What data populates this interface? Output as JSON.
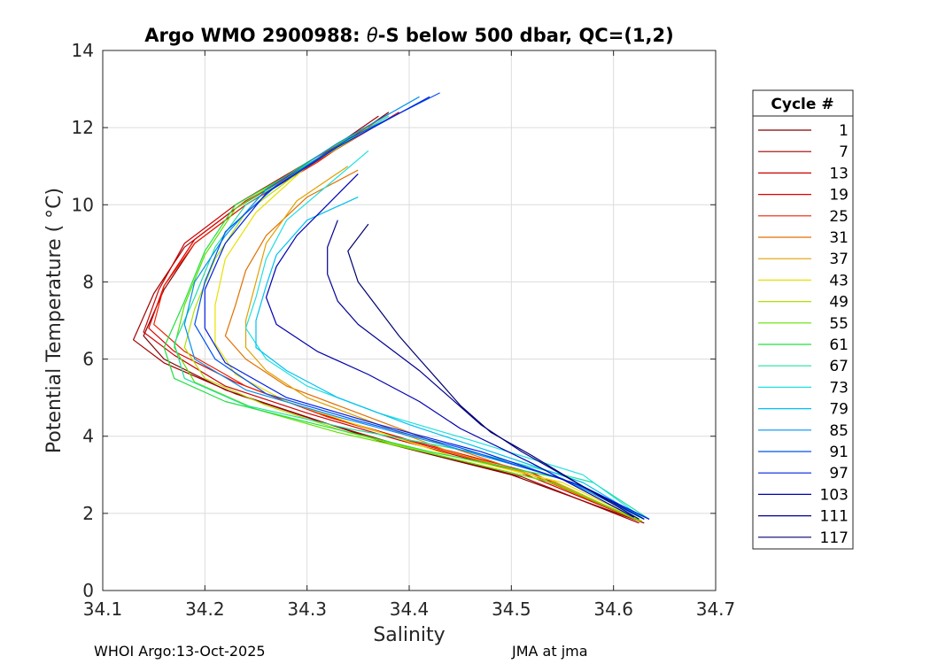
{
  "chart_data": {
    "type": "line",
    "title_prefix": "Argo WMO 2900988: ",
    "title_symbol": "θ",
    "title_suffix": "-S below 500 dbar,  QC=(1,2)",
    "xlabel": "Salinity",
    "ylabel": "Potential Temperature ( °C)",
    "xlim": [
      34.1,
      34.7
    ],
    "ylim": [
      0,
      14
    ],
    "xticks": [
      34.1,
      34.2,
      34.3,
      34.4,
      34.5,
      34.6,
      34.7
    ],
    "xtick_labels": [
      "34.1",
      "34.2",
      "34.3",
      "34.4",
      "34.5",
      "34.6",
      "34.7"
    ],
    "yticks": [
      0,
      2,
      4,
      6,
      8,
      10,
      12,
      14
    ],
    "ytick_labels": [
      "0",
      "2",
      "4",
      "6",
      "8",
      "10",
      "12",
      "14"
    ],
    "grid": true,
    "legend_title": "Cycle #",
    "legend_position": "right",
    "series": [
      {
        "name": "1",
        "color": "#800000",
        "points": [
          [
            34.38,
            12.4
          ],
          [
            34.32,
            11.3
          ],
          [
            34.24,
            10.0
          ],
          [
            34.19,
            9.0
          ],
          [
            34.16,
            7.8
          ],
          [
            34.14,
            6.6
          ],
          [
            34.16,
            6.0
          ],
          [
            34.22,
            5.2
          ],
          [
            34.3,
            4.5
          ],
          [
            34.38,
            3.8
          ],
          [
            34.5,
            3.0
          ],
          [
            34.63,
            1.75
          ]
        ]
      },
      {
        "name": "7",
        "color": "#a00000",
        "points": [
          [
            34.37,
            12.3
          ],
          [
            34.31,
            11.2
          ],
          [
            34.23,
            9.9
          ],
          [
            34.18,
            8.9
          ],
          [
            34.15,
            7.7
          ],
          [
            34.13,
            6.5
          ],
          [
            34.16,
            5.9
          ],
          [
            34.23,
            5.1
          ],
          [
            34.31,
            4.4
          ],
          [
            34.4,
            3.7
          ],
          [
            34.51,
            2.95
          ],
          [
            34.625,
            1.75
          ]
        ]
      },
      {
        "name": "13",
        "color": "#cc0000",
        "points": [
          [
            34.38,
            12.35
          ],
          [
            34.31,
            11.25
          ],
          [
            34.23,
            10.0
          ],
          [
            34.18,
            9.0
          ],
          [
            34.155,
            7.8
          ],
          [
            34.14,
            6.7
          ],
          [
            34.17,
            6.1
          ],
          [
            34.22,
            5.3
          ],
          [
            34.3,
            4.6
          ],
          [
            34.39,
            3.9
          ],
          [
            34.51,
            3.05
          ],
          [
            34.627,
            1.78
          ]
        ]
      },
      {
        "name": "19",
        "color": "#e00000",
        "points": [
          [
            34.39,
            12.4
          ],
          [
            34.32,
            11.3
          ],
          [
            34.24,
            10.1
          ],
          [
            34.19,
            9.1
          ],
          [
            34.16,
            7.9
          ],
          [
            34.145,
            6.8
          ],
          [
            34.17,
            6.2
          ],
          [
            34.23,
            5.4
          ],
          [
            34.31,
            4.6
          ],
          [
            34.4,
            3.9
          ],
          [
            34.52,
            3.05
          ],
          [
            34.628,
            1.77
          ]
        ]
      },
      {
        "name": "25",
        "color": "#ee2000",
        "points": [
          [
            34.37,
            12.2
          ],
          [
            34.31,
            11.1
          ],
          [
            34.24,
            10.0
          ],
          [
            34.19,
            9.0
          ],
          [
            34.16,
            7.9
          ],
          [
            34.15,
            6.9
          ],
          [
            34.18,
            6.2
          ],
          [
            34.24,
            5.3
          ],
          [
            34.32,
            4.5
          ],
          [
            34.41,
            3.8
          ],
          [
            34.52,
            3.0
          ],
          [
            34.627,
            1.78
          ]
        ]
      },
      {
        "name": "31",
        "color": "#e07000",
        "points": [
          [
            34.35,
            10.9
          ],
          [
            34.3,
            10.2
          ],
          [
            34.26,
            9.2
          ],
          [
            34.24,
            8.3
          ],
          [
            34.23,
            7.4
          ],
          [
            34.22,
            6.6
          ],
          [
            34.24,
            6.0
          ],
          [
            34.28,
            5.3
          ],
          [
            34.35,
            4.6
          ],
          [
            34.42,
            3.9
          ],
          [
            34.52,
            3.0
          ],
          [
            34.625,
            1.8
          ]
        ]
      },
      {
        "name": "37",
        "color": "#e0a000",
        "points": [
          [
            34.34,
            11.0
          ],
          [
            34.29,
            10.1
          ],
          [
            34.26,
            9.0
          ],
          [
            34.25,
            8.0
          ],
          [
            34.24,
            7.0
          ],
          [
            34.24,
            6.3
          ],
          [
            34.26,
            5.7
          ],
          [
            34.3,
            5.0
          ],
          [
            34.37,
            4.3
          ],
          [
            34.44,
            3.6
          ],
          [
            34.54,
            2.85
          ],
          [
            34.625,
            1.8
          ]
        ]
      },
      {
        "name": "43",
        "color": "#e8e000",
        "points": [
          [
            34.36,
            12.0
          ],
          [
            34.3,
            11.0
          ],
          [
            34.25,
            9.8
          ],
          [
            34.22,
            8.6
          ],
          [
            34.21,
            7.4
          ],
          [
            34.21,
            6.4
          ],
          [
            34.23,
            5.6
          ],
          [
            34.28,
            4.9
          ],
          [
            34.36,
            4.2
          ],
          [
            34.44,
            3.5
          ],
          [
            34.55,
            2.8
          ],
          [
            34.628,
            1.8
          ]
        ]
      },
      {
        "name": "49",
        "color": "#b0e000",
        "points": [
          [
            34.37,
            12.1
          ],
          [
            34.3,
            11.0
          ],
          [
            34.24,
            9.8
          ],
          [
            34.21,
            8.6
          ],
          [
            34.19,
            7.3
          ],
          [
            34.18,
            6.3
          ],
          [
            34.2,
            5.5
          ],
          [
            34.26,
            4.8
          ],
          [
            34.34,
            4.1
          ],
          [
            34.43,
            3.5
          ],
          [
            34.54,
            2.8
          ],
          [
            34.628,
            1.8
          ]
        ]
      },
      {
        "name": "55",
        "color": "#60e000",
        "points": [
          [
            34.37,
            12.2
          ],
          [
            34.3,
            11.1
          ],
          [
            34.23,
            9.9
          ],
          [
            34.2,
            8.7
          ],
          [
            34.18,
            7.4
          ],
          [
            34.17,
            6.3
          ],
          [
            34.19,
            5.4
          ],
          [
            34.25,
            4.7
          ],
          [
            34.33,
            4.1
          ],
          [
            34.43,
            3.5
          ],
          [
            34.54,
            2.8
          ],
          [
            34.627,
            1.8
          ]
        ]
      },
      {
        "name": "61",
        "color": "#20e040",
        "points": [
          [
            34.38,
            12.3
          ],
          [
            34.31,
            11.2
          ],
          [
            34.23,
            10.0
          ],
          [
            34.2,
            8.8
          ],
          [
            34.18,
            7.5
          ],
          [
            34.16,
            6.3
          ],
          [
            34.17,
            5.5
          ],
          [
            34.22,
            4.9
          ],
          [
            34.31,
            4.3
          ],
          [
            34.42,
            3.6
          ],
          [
            34.55,
            2.9
          ],
          [
            34.63,
            1.85
          ]
        ]
      },
      {
        "name": "67",
        "color": "#20e0a0",
        "points": [
          [
            34.38,
            12.3
          ],
          [
            34.31,
            11.2
          ],
          [
            34.24,
            10.0
          ],
          [
            34.21,
            8.9
          ],
          [
            34.19,
            7.6
          ],
          [
            34.17,
            6.4
          ],
          [
            34.18,
            5.5
          ],
          [
            34.24,
            4.8
          ],
          [
            34.34,
            4.2
          ],
          [
            34.46,
            3.6
          ],
          [
            34.58,
            2.8
          ],
          [
            34.635,
            1.85
          ]
        ]
      },
      {
        "name": "73",
        "color": "#20e0e0",
        "points": [
          [
            34.36,
            11.4
          ],
          [
            34.32,
            10.5
          ],
          [
            34.28,
            9.6
          ],
          [
            34.26,
            8.6
          ],
          [
            34.25,
            7.6
          ],
          [
            34.24,
            6.8
          ],
          [
            34.26,
            6.0
          ],
          [
            34.3,
            5.3
          ],
          [
            34.37,
            4.6
          ],
          [
            34.46,
            3.9
          ],
          [
            34.57,
            3.0
          ],
          [
            34.63,
            1.85
          ]
        ]
      },
      {
        "name": "79",
        "color": "#00c0f0",
        "points": [
          [
            34.35,
            10.2
          ],
          [
            34.3,
            9.6
          ],
          [
            34.27,
            8.7
          ],
          [
            34.26,
            7.9
          ],
          [
            34.25,
            7.0
          ],
          [
            34.25,
            6.3
          ],
          [
            34.28,
            5.7
          ],
          [
            34.33,
            5.0
          ],
          [
            34.4,
            4.3
          ],
          [
            34.48,
            3.6
          ],
          [
            34.57,
            2.8
          ],
          [
            34.63,
            1.85
          ]
        ]
      },
      {
        "name": "85",
        "color": "#0090f0",
        "points": [
          [
            34.41,
            12.8
          ],
          [
            34.33,
            11.6
          ],
          [
            34.26,
            10.4
          ],
          [
            34.22,
            9.2
          ],
          [
            34.19,
            8.0
          ],
          [
            34.18,
            6.9
          ],
          [
            34.19,
            6.0
          ],
          [
            34.24,
            5.2
          ],
          [
            34.33,
            4.5
          ],
          [
            34.43,
            3.8
          ],
          [
            34.55,
            2.9
          ],
          [
            34.63,
            1.85
          ]
        ]
      },
      {
        "name": "91",
        "color": "#0050f0",
        "points": [
          [
            34.43,
            12.9
          ],
          [
            34.34,
            11.7
          ],
          [
            34.27,
            10.5
          ],
          [
            34.22,
            9.3
          ],
          [
            34.2,
            8.0
          ],
          [
            34.19,
            6.9
          ],
          [
            34.21,
            6.0
          ],
          [
            34.26,
            5.1
          ],
          [
            34.35,
            4.4
          ],
          [
            34.45,
            3.7
          ],
          [
            34.56,
            2.8
          ],
          [
            34.635,
            1.85
          ]
        ]
      },
      {
        "name": "97",
        "color": "#0020e0",
        "points": [
          [
            34.42,
            12.8
          ],
          [
            34.33,
            11.5
          ],
          [
            34.26,
            10.3
          ],
          [
            34.22,
            9.0
          ],
          [
            34.2,
            7.8
          ],
          [
            34.2,
            6.8
          ],
          [
            34.22,
            5.9
          ],
          [
            34.28,
            5.0
          ],
          [
            34.37,
            4.3
          ],
          [
            34.47,
            3.6
          ],
          [
            34.57,
            2.7
          ],
          [
            34.635,
            1.85
          ]
        ]
      },
      {
        "name": "103",
        "color": "#0000b0",
        "points": [
          [
            34.35,
            10.8
          ],
          [
            34.32,
            10.0
          ],
          [
            34.29,
            9.2
          ],
          [
            34.27,
            8.4
          ],
          [
            34.26,
            7.6
          ],
          [
            34.27,
            6.9
          ],
          [
            34.31,
            6.2
          ],
          [
            34.36,
            5.6
          ],
          [
            34.41,
            4.9
          ],
          [
            34.45,
            4.2
          ],
          [
            34.52,
            3.3
          ],
          [
            34.62,
            1.9
          ]
        ]
      },
      {
        "name": "111",
        "color": "#000090",
        "points": [
          [
            34.33,
            9.6
          ],
          [
            34.32,
            8.9
          ],
          [
            34.32,
            8.2
          ],
          [
            34.33,
            7.5
          ],
          [
            34.35,
            6.9
          ],
          [
            34.38,
            6.3
          ],
          [
            34.41,
            5.7
          ],
          [
            34.44,
            5.0
          ],
          [
            34.47,
            4.3
          ],
          [
            34.51,
            3.6
          ],
          [
            34.57,
            2.7
          ],
          [
            34.63,
            1.85
          ]
        ]
      },
      {
        "name": "117",
        "color": "#000070",
        "points": [
          [
            34.36,
            9.5
          ],
          [
            34.34,
            8.8
          ],
          [
            34.35,
            8.0
          ],
          [
            34.37,
            7.3
          ],
          [
            34.39,
            6.6
          ],
          [
            34.41,
            6.0
          ],
          [
            34.43,
            5.4
          ],
          [
            34.45,
            4.8
          ],
          [
            34.48,
            4.1
          ],
          [
            34.52,
            3.5
          ],
          [
            34.57,
            2.7
          ],
          [
            34.625,
            1.85
          ]
        ]
      }
    ]
  },
  "footer": {
    "left": "WHOI Argo:13-Oct-2025",
    "right": "JMA at jma"
  }
}
